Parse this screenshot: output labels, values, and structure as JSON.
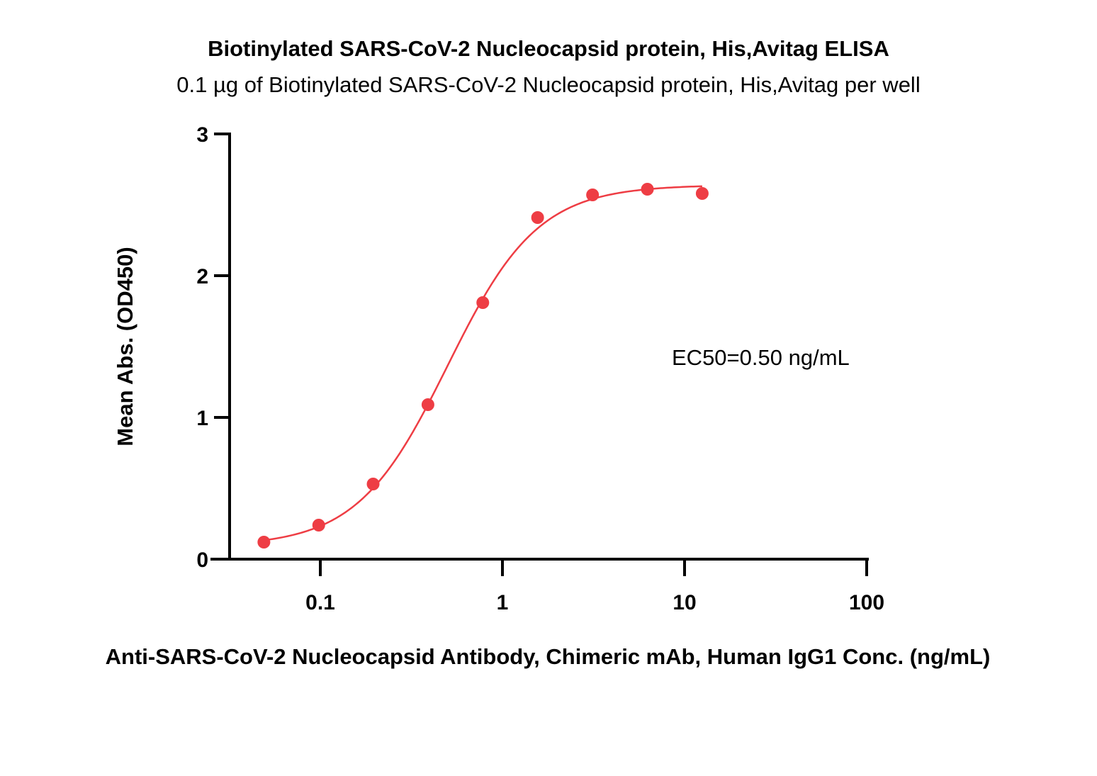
{
  "chart_data": {
    "type": "scatter",
    "title": "Biotinylated SARS-CoV-2 Nucleocapsid protein, His,Avitag ELISA",
    "subtitle": "0.1 µg of Biotinylated SARS-CoV-2 Nucleocapsid protein, His,Avitag per well",
    "xlabel": "Anti-SARS-CoV-2 Nucleocapsid Antibody, Chimeric mAb, Human IgG1 Conc. (ng/mL)",
    "ylabel": "Mean Abs. (OD450)",
    "x_scale": "log",
    "xlim": [
      0.03,
      100
    ],
    "ylim": [
      0,
      3
    ],
    "x_ticks": [
      0.1,
      1,
      10,
      100
    ],
    "x_tick_labels": [
      "0.1",
      "1",
      "10",
      "100"
    ],
    "y_ticks": [
      0,
      1,
      2,
      3
    ],
    "y_tick_labels": [
      "0",
      "1",
      "2",
      "3"
    ],
    "grid": false,
    "annotation": "EC50=0.50 ng/mL",
    "series": [
      {
        "color": "#ee3d44",
        "x": [
          0.049,
          0.098,
          0.195,
          0.39,
          0.78,
          1.56,
          3.125,
          6.25,
          12.5
        ],
        "y": [
          0.12,
          0.24,
          0.53,
          1.09,
          1.81,
          2.41,
          2.57,
          2.61,
          2.58
        ]
      }
    ]
  }
}
